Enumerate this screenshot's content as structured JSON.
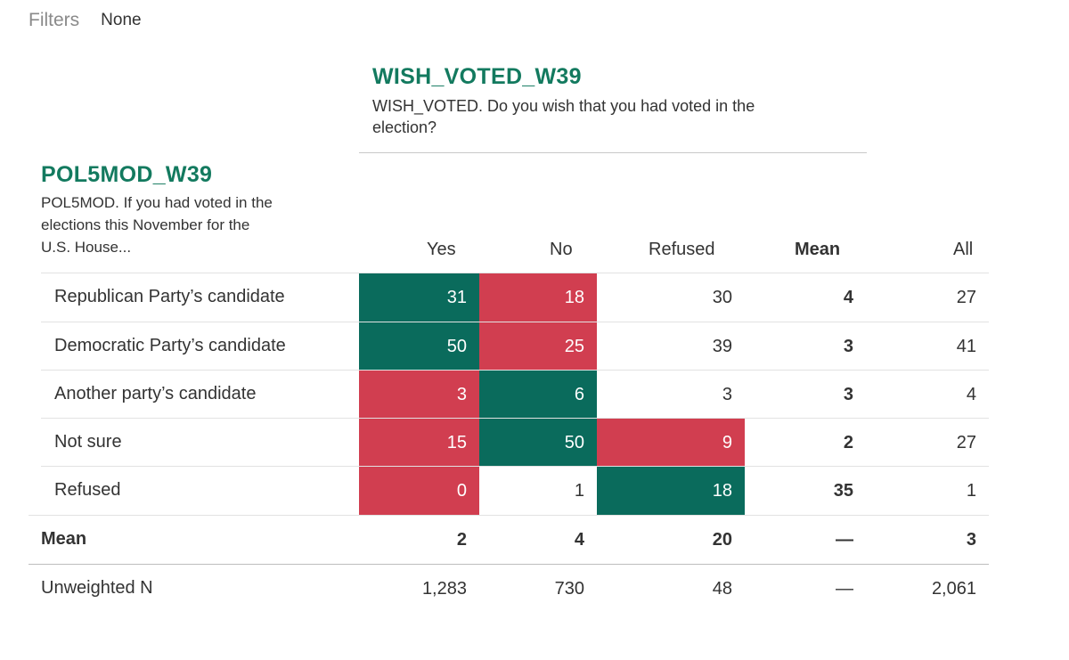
{
  "filters": {
    "label": "Filters",
    "value": "None"
  },
  "column_variable": {
    "name": "WISH_VOTED_W39",
    "description": "WISH_VOTED. Do you wish that you had voted in the election?"
  },
  "row_variable": {
    "name": "POL5MOD_W39",
    "description": "POL5MOD. If you had voted in the elections this November for the U.S. House..."
  },
  "headers": {
    "yes": "Yes",
    "no": "No",
    "refused": "Refused",
    "mean": "Mean",
    "all": "All"
  },
  "colors": {
    "green": "#0a6b5c",
    "red": "#d13e50",
    "title_green": "#137a5f"
  },
  "rows": [
    {
      "label": "Republican Party’s candidate",
      "yes": "31",
      "no": "18",
      "refused": "30",
      "mean": "4",
      "all": "27"
    },
    {
      "label": "Democratic Party’s candidate",
      "yes": "50",
      "no": "25",
      "refused": "39",
      "mean": "3",
      "all": "41"
    },
    {
      "label": "Another party’s candidate",
      "yes": "3",
      "no": "6",
      "refused": "3",
      "mean": "3",
      "all": "4"
    },
    {
      "label": "Not sure",
      "yes": "15",
      "no": "50",
      "refused": "9",
      "mean": "2",
      "all": "27"
    },
    {
      "label": "Refused",
      "yes": "0",
      "no": "1",
      "refused": "18",
      "mean": "35",
      "all": "1"
    }
  ],
  "mean_row": {
    "label": "Mean",
    "yes": "2",
    "no": "4",
    "refused": "20",
    "mean": "—",
    "all": "3"
  },
  "n_row": {
    "label": "Unweighted N",
    "yes": "1,283",
    "no": "730",
    "refused": "48",
    "mean": "—",
    "all": "2,061"
  }
}
